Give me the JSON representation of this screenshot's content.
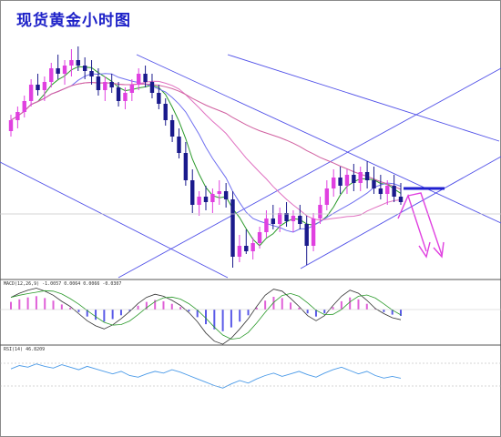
{
  "title": "现货黄金小时图",
  "macd_label": "MACD(12,26,9) -1.0057 0.0064 0.0066 -0.0307",
  "rsi_label": "RSI(14) 46.8209",
  "colors": {
    "title": "#1e22c8",
    "bull_candle": "#e040e0",
    "bear_candle": "#1a1a8c",
    "trendline": "#5050e8",
    "ma_fast": "#2a9a2a",
    "ma_mid": "#7070f0",
    "ma_slow": "#e070c0",
    "ma_long": "#d060a0",
    "arrow": "#e040e0",
    "resistance": "#2020d0",
    "macd_pos": "#e060d8",
    "macd_neg": "#5a5ae8",
    "rsi": "#4a9ae8"
  },
  "chart_data": [
    {
      "type": "candlestick",
      "title": "现货黄金小时图",
      "ohlc": [
        [
          1232,
          1238,
          1230,
          1236
        ],
        [
          1236,
          1241,
          1233,
          1239
        ],
        [
          1239,
          1245,
          1237,
          1243
        ],
        [
          1243,
          1251,
          1241,
          1249
        ],
        [
          1249,
          1253,
          1245,
          1247
        ],
        [
          1247,
          1252,
          1243,
          1250
        ],
        [
          1250,
          1257,
          1248,
          1255
        ],
        [
          1255,
          1260,
          1251,
          1253
        ],
        [
          1253,
          1258,
          1249,
          1256
        ],
        [
          1256,
          1262,
          1252,
          1258
        ],
        [
          1258,
          1263,
          1254,
          1256
        ],
        [
          1256,
          1259,
          1251,
          1254
        ],
        [
          1254,
          1258,
          1249,
          1252
        ],
        [
          1252,
          1255,
          1245,
          1247
        ],
        [
          1247,
          1252,
          1243,
          1250
        ],
        [
          1250,
          1253,
          1246,
          1248
        ],
        [
          1248,
          1250,
          1241,
          1243
        ],
        [
          1243,
          1248,
          1240,
          1246
        ],
        [
          1246,
          1251,
          1243,
          1249
        ],
        [
          1249,
          1255,
          1247,
          1253
        ],
        [
          1253,
          1256,
          1248,
          1250
        ],
        [
          1250,
          1253,
          1244,
          1246
        ],
        [
          1246,
          1249,
          1240,
          1242
        ],
        [
          1242,
          1244,
          1234,
          1236
        ],
        [
          1236,
          1238,
          1228,
          1230
        ],
        [
          1230,
          1233,
          1222,
          1224
        ],
        [
          1224,
          1228,
          1212,
          1214
        ],
        [
          1214,
          1218,
          1202,
          1205
        ],
        [
          1205,
          1210,
          1201,
          1208
        ],
        [
          1208,
          1212,
          1203,
          1206
        ],
        [
          1206,
          1211,
          1202,
          1209
        ],
        [
          1209,
          1214,
          1205,
          1210
        ],
        [
          1210,
          1213,
          1204,
          1207
        ],
        [
          1207,
          1210,
          1182,
          1186
        ],
        [
          1186,
          1194,
          1184,
          1190
        ],
        [
          1190,
          1196,
          1187,
          1188
        ],
        [
          1188,
          1193,
          1185,
          1191
        ],
        [
          1191,
          1197,
          1189,
          1195
        ],
        [
          1195,
          1203,
          1193,
          1200
        ],
        [
          1200,
          1205,
          1196,
          1198
        ],
        [
          1198,
          1204,
          1195,
          1202
        ],
        [
          1202,
          1206,
          1197,
          1199
        ],
        [
          1199,
          1203,
          1195,
          1201
        ],
        [
          1201,
          1205,
          1196,
          1198
        ],
        [
          1198,
          1201,
          1183,
          1190
        ],
        [
          1190,
          1202,
          1188,
          1200
        ],
        [
          1200,
          1208,
          1198,
          1205
        ],
        [
          1205,
          1214,
          1203,
          1211
        ],
        [
          1211,
          1218,
          1208,
          1215
        ],
        [
          1215,
          1219,
          1209,
          1212
        ],
        [
          1212,
          1218,
          1209,
          1216
        ],
        [
          1216,
          1220,
          1210,
          1213
        ],
        [
          1213,
          1219,
          1210,
          1217
        ],
        [
          1217,
          1221,
          1211,
          1214
        ],
        [
          1214,
          1219,
          1209,
          1211
        ],
        [
          1211,
          1216,
          1207,
          1209
        ],
        [
          1209,
          1214,
          1205,
          1212
        ],
        [
          1212,
          1216,
          1206,
          1208
        ],
        [
          1208,
          1213,
          1205,
          1206
        ]
      ],
      "annotations": [
        "descending channel",
        "ascending channel",
        "resistance level",
        "bearish projection arrows"
      ]
    },
    {
      "type": "bar",
      "indicator": "MACD",
      "label": "MACD(12,26,9) -1.0057 0.0064 0.0066 -0.0307",
      "values": [
        1.2,
        1.6,
        1.9,
        2.1,
        1.8,
        1.4,
        0.8,
        0.3,
        -0.4,
        -1.1,
        -1.6,
        -1.9,
        -1.5,
        -0.9,
        -0.2,
        0.6,
        1.2,
        1.5,
        1.3,
        0.9,
        0.4,
        -0.3,
        -1.2,
        -2.3,
        -3.1,
        -3.4,
        -2.8,
        -1.9,
        -0.9,
        0.3,
        1.4,
        2.0,
        1.8,
        1.1,
        0.3,
        -0.6,
        -1.1,
        -0.6,
        0.4,
        1.3,
        1.9,
        1.6,
        0.9,
        0.1,
        -0.4,
        -0.8,
        -1.0
      ]
    },
    {
      "type": "line",
      "indicator": "RSI",
      "label": "RSI(14) 46.8209",
      "values": [
        58,
        62,
        60,
        64,
        61,
        59,
        63,
        60,
        57,
        61,
        58,
        55,
        52,
        55,
        50,
        48,
        52,
        55,
        53,
        57,
        54,
        50,
        46,
        42,
        38,
        35,
        40,
        44,
        41,
        46,
        50,
        53,
        49,
        52,
        55,
        51,
        48,
        53,
        57,
        60,
        56,
        52,
        55,
        50,
        47,
        49,
        46.8
      ]
    }
  ]
}
